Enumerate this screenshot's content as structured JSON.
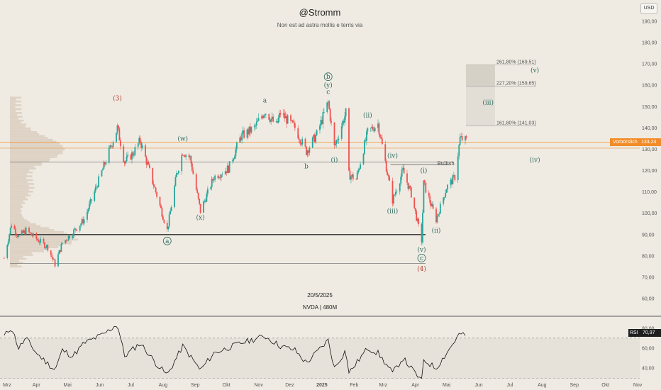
{
  "header": {
    "title": "@Stromm",
    "subtitle": "Non est ad astra mollis e terris via"
  },
  "watermark": {
    "date": "20/5/2025",
    "symbol": "NVDA | 480M"
  },
  "currency": "USD",
  "price_tag": {
    "label": "Vorbörslich",
    "value": "133,24"
  },
  "rsi_tag": {
    "label": "RSI",
    "value": "70,97"
  },
  "colors": {
    "up": "#26a69a",
    "down": "#ef5350",
    "accent": "#f28c28",
    "wave_green": "#2e6b5e",
    "wave_red": "#b23a2f",
    "rsi_line": "#111111"
  },
  "chart_data": [
    {
      "type": "candlestick",
      "ylim": [
        60,
        200
      ],
      "y_ticks": [
        "60,00",
        "70,00",
        "80,00",
        "90,00",
        "100,00",
        "110,00",
        "120,00",
        "130,00",
        "140,00",
        "150,00",
        "160,00",
        "170,00",
        "180,00",
        "190,00"
      ],
      "x_ticks": [
        "Mrz",
        "Apr",
        "Mai",
        "Jun",
        "Jul",
        "Aug",
        "Sep",
        "Okt",
        "Nov",
        "Dez",
        "2025",
        "Feb",
        "Mrz",
        "Apr",
        "Mai",
        "Jun",
        "Jul",
        "Aug",
        "Sep",
        "Okt",
        "Nov"
      ],
      "price_path": [
        [
          "2024-03-01",
          79
        ],
        [
          "2024-03-08",
          95
        ],
        [
          "2024-03-15",
          89
        ],
        [
          "2024-03-22",
          92
        ],
        [
          "2024-04-01",
          88
        ],
        [
          "2024-04-12",
          84
        ],
        [
          "2024-04-19",
          76
        ],
        [
          "2024-04-26",
          86
        ],
        [
          "2024-05-06",
          91
        ],
        [
          "2024-05-17",
          97
        ],
        [
          "2024-05-24",
          106
        ],
        [
          "2024-06-05",
          122
        ],
        [
          "2024-06-18",
          140
        ],
        [
          "2024-06-25",
          124
        ],
        [
          "2024-07-03",
          128
        ],
        [
          "2024-07-10",
          134
        ],
        [
          "2024-07-25",
          110
        ],
        [
          "2024-08-05",
          92
        ],
        [
          "2024-08-14",
          118
        ],
        [
          "2024-08-20",
          129
        ],
        [
          "2024-08-27",
          126
        ],
        [
          "2024-09-06",
          101
        ],
        [
          "2024-09-19",
          117
        ],
        [
          "2024-10-03",
          121
        ],
        [
          "2024-10-15",
          136
        ],
        [
          "2024-10-28",
          140
        ],
        [
          "2024-11-07",
          148
        ],
        [
          "2024-11-18",
          141
        ],
        [
          "2024-11-22",
          147
        ],
        [
          "2024-12-06",
          140
        ],
        [
          "2024-12-17",
          129
        ],
        [
          "2024-12-27",
          137
        ],
        [
          "2025-01-07",
          152
        ],
        [
          "2025-01-13",
          131
        ],
        [
          "2025-01-24",
          147
        ],
        [
          "2025-01-27",
          118
        ],
        [
          "2025-02-03",
          116
        ],
        [
          "2025-02-14",
          138
        ],
        [
          "2025-02-24",
          142
        ],
        [
          "2025-03-10",
          106
        ],
        [
          "2025-03-20",
          120
        ],
        [
          "2025-03-28",
          109
        ],
        [
          "2025-04-07",
          87
        ],
        [
          "2025-04-09",
          114
        ],
        [
          "2025-04-21",
          97
        ],
        [
          "2025-05-01",
          112
        ],
        [
          "2025-05-09",
          117
        ],
        [
          "2025-05-14",
          135
        ],
        [
          "2025-05-20",
          134
        ]
      ],
      "horizontal_lines": [
        130.5,
        124,
        90,
        76.5,
        133.24
      ],
      "fib_zone": [
        {
          "label": "261,80% (169,51)",
          "value": 169.51
        },
        {
          "label": "227,20% (159,65)",
          "value": 159.65
        },
        {
          "label": "161,80% (141,03)",
          "value": 141.03
        }
      ],
      "annotations": [
        {
          "text": "(3)",
          "date": "2024-06-18",
          "y": 153,
          "color": "red"
        },
        {
          "text": "(w)",
          "date": "2024-08-20",
          "y": 134,
          "color": "green"
        },
        {
          "text": "(x)",
          "date": "2024-09-06",
          "y": 97,
          "color": "green"
        },
        {
          "text": "a",
          "date": "2024-08-05",
          "y": 86,
          "color": "green",
          "circled": true
        },
        {
          "text": "a",
          "date": "2024-11-07",
          "y": 152,
          "color": "green"
        },
        {
          "text": "b",
          "date": "2024-12-17",
          "y": 121,
          "color": "green"
        },
        {
          "text": "b",
          "date": "2025-01-07",
          "y": 163,
          "color": "green",
          "circled": true
        },
        {
          "text": "(y)",
          "date": "2025-01-07",
          "y": 159,
          "color": "green"
        },
        {
          "text": "c",
          "date": "2025-01-07",
          "y": 156,
          "color": "green"
        },
        {
          "text": "(i)",
          "date": "2025-01-13",
          "y": 124,
          "color": "green"
        },
        {
          "text": "(ii)",
          "date": "2025-02-14",
          "y": 145,
          "color": "green"
        },
        {
          "text": "(iv)",
          "date": "2025-03-10",
          "y": 126,
          "color": "green"
        },
        {
          "text": "(iii)",
          "date": "2025-03-10",
          "y": 100,
          "color": "green"
        },
        {
          "text": "(i)",
          "date": "2025-04-09",
          "y": 119,
          "color": "green"
        },
        {
          "text": "(ii)",
          "date": "2025-04-21",
          "y": 91,
          "color": "green"
        },
        {
          "text": "(v)",
          "date": "2025-04-07",
          "y": 82,
          "color": "green"
        },
        {
          "text": "c",
          "date": "2025-04-07",
          "y": 78,
          "color": "green",
          "circled": true
        },
        {
          "text": "(4)",
          "date": "2025-04-07",
          "y": 73,
          "color": "red"
        },
        {
          "text": "(iii)",
          "date": "2025-06-10",
          "y": 151,
          "color": "green"
        },
        {
          "text": "(v)",
          "date": "2025-07-25",
          "y": 166,
          "color": "green"
        },
        {
          "text": "(iv)",
          "date": "2025-07-25",
          "y": 124,
          "color": "green"
        },
        {
          "text": "Bullish",
          "date": "2025-04-22",
          "y": 122.5,
          "color": "gray"
        }
      ]
    },
    {
      "type": "line",
      "title": "RSI",
      "ylim": [
        30,
        85
      ],
      "y_ticks": [
        "40,00",
        "60,00",
        "80,00"
      ],
      "reference_lines": [
        70,
        30
      ],
      "rsi_path": [
        [
          "2024-03-01",
          72
        ],
        [
          "2024-03-08",
          81
        ],
        [
          "2024-03-15",
          60
        ],
        [
          "2024-03-22",
          70
        ],
        [
          "2024-04-01",
          55
        ],
        [
          "2024-04-19",
          38
        ],
        [
          "2024-04-26",
          58
        ],
        [
          "2024-05-06",
          52
        ],
        [
          "2024-05-17",
          65
        ],
        [
          "2024-06-05",
          74
        ],
        [
          "2024-06-18",
          84
        ],
        [
          "2024-06-25",
          52
        ],
        [
          "2024-07-10",
          65
        ],
        [
          "2024-07-25",
          45
        ],
        [
          "2024-08-05",
          33
        ],
        [
          "2024-08-20",
          62
        ],
        [
          "2024-09-06",
          38
        ],
        [
          "2024-09-19",
          55
        ],
        [
          "2024-10-15",
          65
        ],
        [
          "2024-11-07",
          72
        ],
        [
          "2024-11-22",
          62
        ],
        [
          "2024-12-06",
          58
        ],
        [
          "2024-12-17",
          45
        ],
        [
          "2025-01-07",
          68
        ],
        [
          "2025-01-13",
          40
        ],
        [
          "2025-01-24",
          58
        ],
        [
          "2025-01-27",
          35
        ],
        [
          "2025-02-14",
          60
        ],
        [
          "2025-02-24",
          55
        ],
        [
          "2025-03-10",
          35
        ],
        [
          "2025-03-20",
          50
        ],
        [
          "2025-04-07",
          27
        ],
        [
          "2025-04-09",
          48
        ],
        [
          "2025-04-21",
          40
        ],
        [
          "2025-05-01",
          55
        ],
        [
          "2025-05-14",
          75
        ],
        [
          "2025-05-20",
          71
        ]
      ]
    }
  ]
}
